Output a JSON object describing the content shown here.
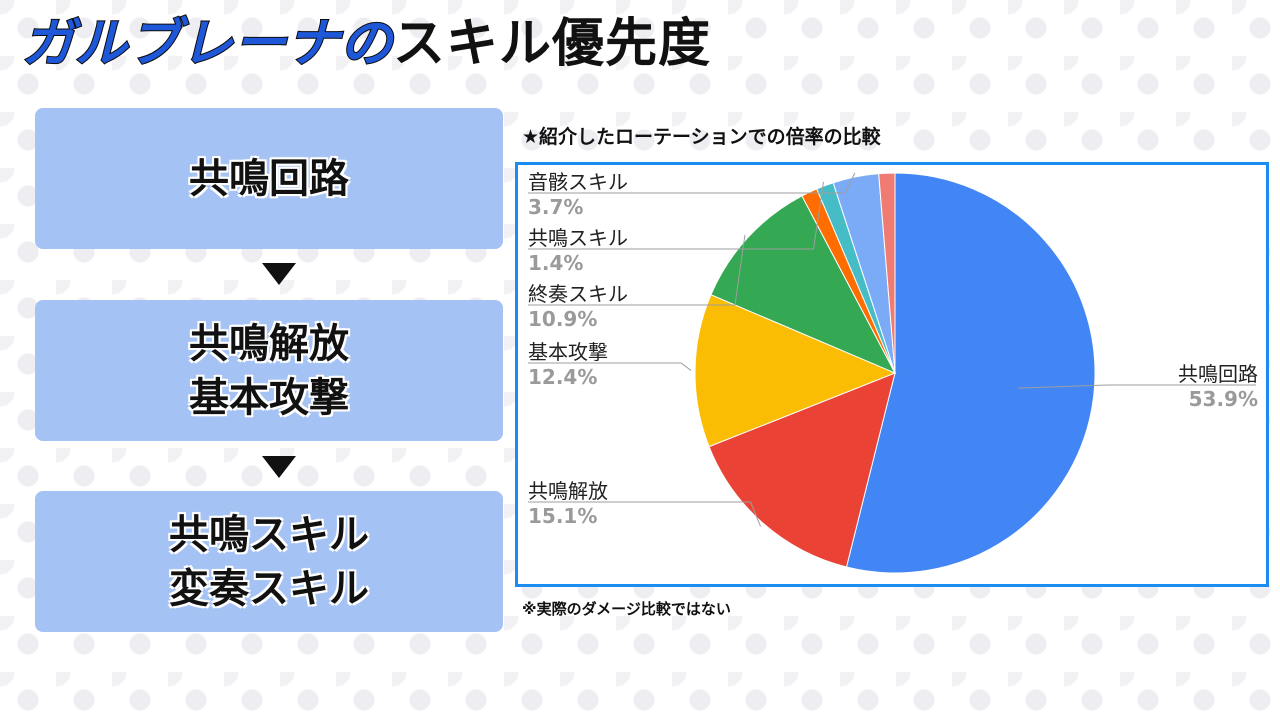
{
  "title": {
    "accent": "ガルブレーナの",
    "main": "スキル優先度"
  },
  "priority": {
    "steps": [
      {
        "lines": [
          "共鳴回路"
        ]
      },
      {
        "lines": [
          "共鳴解放",
          "基本攻撃"
        ]
      },
      {
        "lines": [
          "共鳴スキル",
          "変奏スキル"
        ]
      }
    ],
    "arrow_icon": "down-triangle-icon"
  },
  "chart_heading": "★紹介したローテーションでの倍率の比較",
  "footnote": "※実際のダメージ比較ではない",
  "frame_color": "#1c8df0",
  "chart_data": {
    "type": "pie",
    "title": "",
    "start_angle_deg": 0,
    "direction": "clockwise",
    "slices": [
      {
        "label": "共鳴回路",
        "value": 53.9,
        "display": "53.9%",
        "color": "#4285f4"
      },
      {
        "label": "共鳴解放",
        "value": 15.1,
        "display": "15.1%",
        "color": "#ea4335"
      },
      {
        "label": "基本攻撃",
        "value": 12.4,
        "display": "12.4%",
        "color": "#fbbc04"
      },
      {
        "label": "終奏スキル",
        "value": 10.9,
        "display": "10.9%",
        "color": "#34a853"
      },
      {
        "label": "",
        "value": 1.3,
        "display": "",
        "color": "#ff6d01"
      },
      {
        "label": "共鳴スキル",
        "value": 1.4,
        "display": "1.4%",
        "color": "#46bdc6"
      },
      {
        "label": "音骸スキル",
        "value": 3.7,
        "display": "3.7%",
        "color": "#7baaf7"
      },
      {
        "label": "",
        "value": 1.3,
        "display": "",
        "color": "#f07b72"
      }
    ],
    "legend": "none",
    "labels": "outside with leader lines"
  }
}
